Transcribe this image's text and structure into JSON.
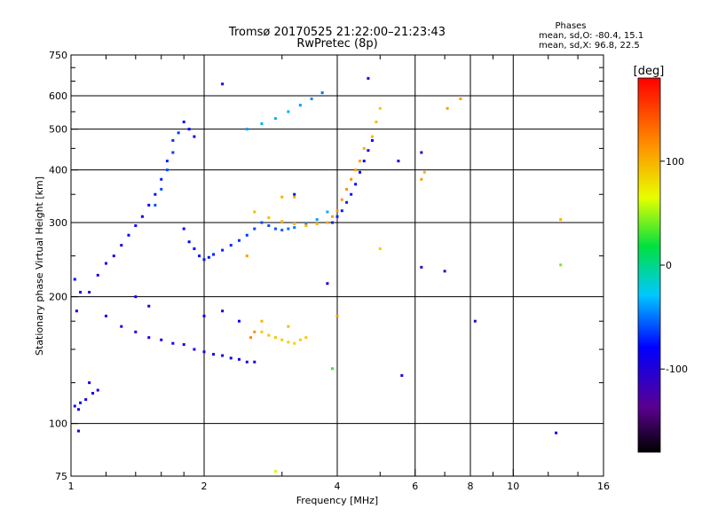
{
  "chart_data": {
    "type": "scatter",
    "title": "Tromsø 20170525 21:22:00–21:23:43",
    "subtitle": "RwPretec (8p)",
    "xlabel": "Frequency [MHz]",
    "ylabel": "Stationary phase Virtual Height [km]",
    "x_scale": "log",
    "y_scale": "log",
    "xlim": [
      1,
      16
    ],
    "ylim": [
      75,
      750
    ],
    "x_ticks": [
      1,
      2,
      4,
      6,
      8,
      10,
      16
    ],
    "x_tick_labels": [
      "1",
      "2",
      "4",
      "6",
      "8",
      "10",
      "16"
    ],
    "x_minor_ticks": [
      1.2,
      1.4,
      1.6,
      1.8,
      3,
      5,
      7,
      9,
      12,
      14
    ],
    "y_ticks": [
      75,
      100,
      200,
      300,
      400,
      500,
      600,
      750
    ],
    "y_tick_labels": [
      "75",
      "100",
      "200",
      "300",
      "400",
      "500",
      "600",
      "750"
    ],
    "y_minor_ticks": [
      125,
      150,
      175,
      250,
      350,
      450,
      550,
      650,
      700
    ],
    "grid": true,
    "phases": {
      "label": "Phases",
      "o_stats": "mean, sd,O: -80.4, 15.1",
      "x_stats": "mean, sd,X:  96.8, 22.5"
    },
    "colorbar": {
      "label": "[deg]",
      "ticks": [
        100,
        0,
        -100
      ],
      "tick_labels": [
        "100",
        "0",
        "-100"
      ],
      "range": [
        -180,
        180
      ],
      "colormap": "rainbow"
    },
    "series": [
      {
        "points": [
          [
            1.02,
            110,
            -95
          ],
          [
            1.05,
            112,
            -95
          ],
          [
            1.08,
            114,
            -92
          ],
          [
            1.12,
            118,
            -90
          ],
          [
            1.15,
            120,
            -92
          ],
          [
            1.04,
            108,
            -90
          ],
          [
            1.1,
            125,
            -88
          ],
          [
            1.03,
            185,
            -85
          ],
          [
            1.05,
            205,
            -85
          ],
          [
            1.02,
            220,
            -80
          ],
          [
            1.04,
            96,
            -100
          ],
          [
            1.1,
            205,
            -95
          ],
          [
            1.15,
            225,
            -95
          ],
          [
            1.2,
            240,
            -92
          ],
          [
            1.25,
            250,
            -90
          ],
          [
            1.3,
            265,
            -88
          ],
          [
            1.35,
            280,
            -85
          ],
          [
            1.4,
            295,
            -82
          ],
          [
            1.45,
            310,
            -80
          ],
          [
            1.5,
            330,
            -78
          ],
          [
            1.55,
            350,
            -75
          ],
          [
            1.6,
            380,
            -72
          ],
          [
            1.65,
            420,
            -70
          ],
          [
            1.7,
            470,
            -68
          ],
          [
            1.55,
            330,
            -60
          ],
          [
            1.6,
            360,
            -60
          ],
          [
            1.65,
            400,
            -62
          ],
          [
            1.7,
            440,
            -65
          ],
          [
            1.75,
            490,
            -65
          ],
          [
            1.8,
            520,
            -80
          ],
          [
            1.85,
            500,
            -85
          ],
          [
            1.9,
            480,
            -90
          ],
          [
            1.8,
            290,
            -85
          ],
          [
            1.85,
            270,
            -80
          ],
          [
            1.9,
            260,
            -78
          ],
          [
            1.95,
            250,
            -75
          ],
          [
            2.0,
            245,
            -75
          ],
          [
            2.05,
            248,
            -75
          ],
          [
            2.1,
            252,
            -72
          ],
          [
            2.2,
            258,
            -72
          ],
          [
            2.3,
            265,
            -70
          ],
          [
            2.4,
            272,
            -68
          ],
          [
            2.5,
            280,
            -65
          ],
          [
            2.6,
            290,
            -62
          ],
          [
            2.7,
            300,
            -60
          ],
          [
            2.8,
            295,
            -60
          ],
          [
            2.9,
            290,
            -58
          ],
          [
            3.0,
            288,
            -55
          ],
          [
            3.1,
            290,
            -52
          ],
          [
            3.2,
            292,
            -50
          ],
          [
            3.4,
            298,
            -45
          ],
          [
            3.6,
            305,
            -40
          ],
          [
            3.8,
            318,
            -35
          ],
          [
            3.9,
            300,
            -70
          ],
          [
            4.0,
            310,
            -70
          ],
          [
            4.1,
            320,
            -72
          ],
          [
            4.2,
            335,
            -72
          ],
          [
            4.3,
            350,
            -75
          ],
          [
            4.4,
            370,
            -78
          ],
          [
            4.5,
            395,
            -80
          ],
          [
            4.6,
            420,
            -82
          ],
          [
            4.7,
            445,
            -85
          ],
          [
            4.8,
            470,
            -85
          ],
          [
            1.2,
            180,
            -90
          ],
          [
            1.3,
            170,
            -90
          ],
          [
            1.4,
            165,
            -92
          ],
          [
            1.5,
            160,
            -90
          ],
          [
            1.6,
            158,
            -88
          ],
          [
            1.7,
            155,
            -88
          ],
          [
            1.8,
            154,
            -88
          ],
          [
            1.9,
            150,
            -90
          ],
          [
            2.0,
            148,
            -90
          ],
          [
            2.1,
            146,
            -92
          ],
          [
            2.2,
            145,
            -92
          ],
          [
            2.3,
            143,
            -90
          ],
          [
            2.4,
            142,
            -88
          ],
          [
            2.5,
            140,
            -88
          ],
          [
            2.6,
            140,
            -90
          ],
          [
            1.4,
            200,
            -88
          ],
          [
            1.5,
            190,
            -90
          ],
          [
            2.0,
            180,
            -88
          ],
          [
            2.2,
            185,
            -85
          ],
          [
            2.4,
            175,
            -88
          ],
          [
            2.5,
            500,
            -40
          ],
          [
            2.7,
            515,
            -35
          ],
          [
            2.9,
            530,
            -35
          ],
          [
            3.1,
            550,
            -35
          ],
          [
            3.3,
            570,
            -40
          ],
          [
            3.5,
            590,
            -45
          ],
          [
            3.7,
            610,
            -50
          ],
          [
            2.2,
            640,
            -100
          ],
          [
            4.7,
            660,
            -100
          ],
          [
            3.8,
            215,
            -95
          ],
          [
            3.2,
            350,
            -90
          ],
          [
            5.5,
            420,
            -100
          ],
          [
            6.2,
            440,
            -105
          ],
          [
            6.2,
            235,
            -110
          ],
          [
            7.0,
            230,
            -110
          ],
          [
            8.2,
            175,
            -110
          ],
          [
            5.6,
            130,
            -105
          ],
          [
            12.5,
            95,
            -100
          ]
        ]
      },
      {
        "points": [
          [
            4.8,
            480,
            95
          ],
          [
            4.9,
            520,
            95
          ],
          [
            5.0,
            560,
            90
          ],
          [
            4.6,
            450,
            100
          ],
          [
            4.5,
            420,
            105
          ],
          [
            4.4,
            400,
            110
          ],
          [
            4.3,
            380,
            115
          ],
          [
            4.2,
            360,
            115
          ],
          [
            4.1,
            340,
            112
          ],
          [
            4.0,
            320,
            110
          ],
          [
            3.9,
            310,
            108
          ],
          [
            3.8,
            300,
            105
          ],
          [
            3.6,
            298,
            102
          ],
          [
            3.4,
            295,
            100
          ],
          [
            3.2,
            298,
            98
          ],
          [
            3.0,
            302,
            96
          ],
          [
            2.8,
            308,
            95
          ],
          [
            2.6,
            318,
            95
          ],
          [
            2.7,
            165,
            90
          ],
          [
            2.8,
            162,
            92
          ],
          [
            2.9,
            160,
            92
          ],
          [
            3.0,
            158,
            90
          ],
          [
            3.1,
            156,
            88
          ],
          [
            3.2,
            155,
            85
          ],
          [
            3.3,
            158,
            88
          ],
          [
            3.4,
            160,
            90
          ],
          [
            2.7,
            175,
            100
          ],
          [
            3.1,
            170,
            95
          ],
          [
            2.55,
            160,
            120
          ],
          [
            2.6,
            165,
            115
          ],
          [
            2.5,
            250,
            110
          ],
          [
            3.0,
            345,
            100
          ],
          [
            3.2,
            345,
            105
          ],
          [
            6.2,
            380,
            110
          ],
          [
            6.3,
            395,
            100
          ],
          [
            7.1,
            560,
            110
          ],
          [
            7.6,
            590,
            110
          ],
          [
            12.8,
            305,
            100
          ],
          [
            12.8,
            238,
            40
          ],
          [
            5.0,
            260,
            85
          ],
          [
            4.0,
            180,
            110
          ],
          [
            3.9,
            135,
            30
          ],
          [
            2.9,
            77,
            60
          ]
        ]
      }
    ]
  }
}
